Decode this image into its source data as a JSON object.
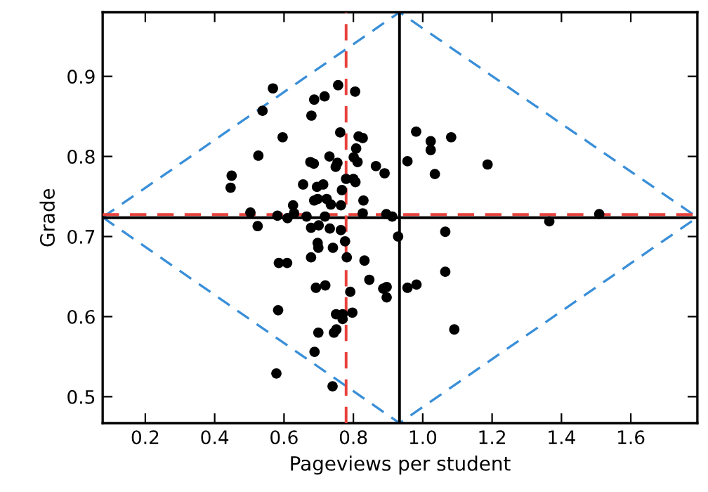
{
  "chart_data": {
    "type": "scatter",
    "xlabel": "Pageviews per student",
    "ylabel": "Grade",
    "xlim": [
      0.077,
      1.792
    ],
    "ylim": [
      0.467,
      0.98
    ],
    "xticks": [
      0.2,
      0.4,
      0.6,
      0.8,
      {
        "value": 1,
        "label": "1.0"
      },
      1.2,
      1.4,
      1.6
    ],
    "yticks": [
      0.5,
      0.6,
      0.7,
      0.8,
      0.9
    ],
    "grid": false,
    "series": [
      {
        "type": "line",
        "color": "#3a8fd8",
        "line_style": "dashed",
        "marker": "none",
        "x": [
          0.077,
          0.933,
          1.792
        ],
        "values": [
          0.724,
          0.98,
          0.724
        ]
      },
      {
        "type": "line",
        "color": "#3a8fd8",
        "line_style": "dashed",
        "marker": "none",
        "x": [
          0.077,
          0.933,
          1.792
        ],
        "values": [
          0.724,
          0.467,
          0.724
        ]
      },
      {
        "type": "scatter",
        "color": "#000000",
        "marker": "circle",
        "x": [
          0.446,
          0.449,
          0.503,
          0.526,
          0.524,
          0.538,
          0.568,
          0.581,
          0.583,
          0.578,
          0.596,
          0.585,
          0.609,
          0.61,
          0.626,
          0.629,
          0.655,
          0.665,
          0.676,
          0.678,
          0.678,
          0.679,
          0.687,
          0.687,
          0.686,
          0.692,
          0.695,
          0.697,
          0.7,
          0.699,
          0.697,
          0.699,
          0.688,
          0.713,
          0.717,
          0.718,
          0.719,
          0.723,
          0.731,
          0.732,
          0.735,
          0.741,
          0.74,
          0.744,
          0.749,
          0.751,
          0.754,
          0.75,
          0.756,
          0.762,
          0.764,
          0.764,
          0.767,
          0.769,
          0.769,
          0.776,
          0.779,
          0.781,
          0.791,
          0.797,
          0.8,
          0.801,
          0.805,
          0.806,
          0.808,
          0.812,
          0.815,
          0.827,
          0.829,
          0.827,
          0.832,
          0.846,
          0.865,
          0.886,
          0.89,
          0.896,
          0.895,
          0.896,
          0.912,
          0.929,
          0.956,
          0.956,
          0.981,
          0.982,
          1.023,
          1.023,
          1.035,
          1.065,
          1.065,
          1.082,
          1.091,
          1.187,
          1.365,
          1.509
        ],
        "values": [
          0.761,
          0.776,
          0.73,
          0.801,
          0.713,
          0.857,
          0.885,
          0.726,
          0.608,
          0.529,
          0.824,
          0.667,
          0.667,
          0.723,
          0.739,
          0.729,
          0.765,
          0.725,
          0.793,
          0.711,
          0.674,
          0.851,
          0.871,
          0.745,
          0.791,
          0.636,
          0.762,
          0.747,
          0.714,
          0.686,
          0.692,
          0.58,
          0.556,
          0.765,
          0.875,
          0.725,
          0.639,
          0.747,
          0.8,
          0.71,
          0.74,
          0.686,
          0.513,
          0.58,
          0.787,
          0.584,
          0.792,
          0.603,
          0.889,
          0.83,
          0.739,
          0.708,
          0.758,
          0.597,
          0.603,
          0.694,
          0.772,
          0.674,
          0.631,
          0.605,
          0.772,
          0.799,
          0.881,
          0.768,
          0.81,
          0.793,
          0.825,
          0.823,
          0.745,
          0.729,
          0.67,
          0.646,
          0.788,
          0.635,
          0.779,
          0.637,
          0.728,
          0.624,
          0.725,
          0.7,
          0.794,
          0.636,
          0.831,
          0.64,
          0.819,
          0.808,
          0.778,
          0.706,
          0.656,
          0.824,
          0.584,
          0.79,
          0.719,
          0.728
        ]
      }
    ],
    "ref_lines": [
      {
        "axis": "x",
        "value": 0.933,
        "color": "#000000",
        "line_style": "solid"
      },
      {
        "axis": "y",
        "value": 0.7235,
        "color": "#000000",
        "line_style": "solid"
      },
      {
        "axis": "x",
        "value": 0.779,
        "color": "#e8413c",
        "line_style": "dashed"
      },
      {
        "axis": "y",
        "value": 0.7275,
        "color": "#e8413c",
        "line_style": "dashed"
      }
    ]
  }
}
